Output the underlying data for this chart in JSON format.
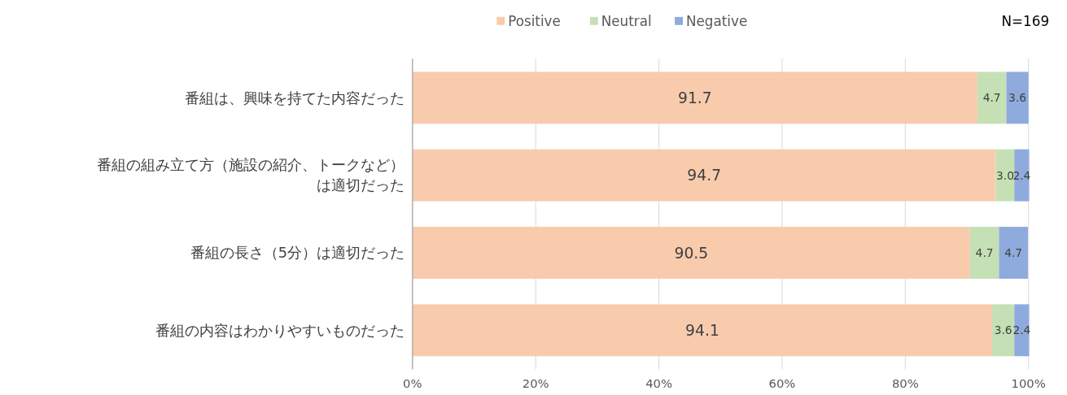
{
  "chart_data": {
    "type": "bar",
    "orientation": "horizontal",
    "stacked": true,
    "categories": [
      "番組は、興味を持てた内容だった",
      "番組の組み立て方（施設の紹介、トークなど）は適切だった",
      "番組の長さ（5分）は適切だった",
      "番組の内容はわかりやすいものだった"
    ],
    "series": [
      {
        "name": "Positive",
        "color": "#f8cbad",
        "values": [
          91.7,
          94.7,
          90.5,
          94.1
        ]
      },
      {
        "name": "Neutral",
        "color": "#c5e0b4",
        "values": [
          4.7,
          3.0,
          4.7,
          3.6
        ],
        "value_labels": [
          "4.7",
          "3.0",
          "4.7",
          "3.6"
        ]
      },
      {
        "name": "Negative",
        "color": "#8faadc",
        "values": [
          3.6,
          2.4,
          4.7,
          2.4
        ]
      }
    ],
    "xlim": [
      0,
      100.1
    ],
    "xticks": [
      {
        "value": 0,
        "label": "0%"
      },
      {
        "value": 20,
        "label": "20%"
      },
      {
        "value": 40,
        "label": "40%"
      },
      {
        "value": 60,
        "label": "60%"
      },
      {
        "value": 80,
        "label": "80%"
      },
      {
        "value": 100,
        "label": "100%"
      }
    ],
    "grid": "x",
    "legend": "top",
    "data_labels": true,
    "annotations": [
      "N=169"
    ]
  }
}
